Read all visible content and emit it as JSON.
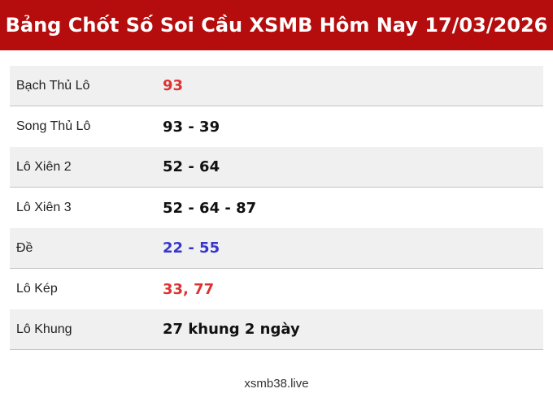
{
  "header": {
    "title": "Bảng Chốt Số Soi Cầu XSMB Hôm Nay 17/03/2026"
  },
  "table": {
    "rows": [
      {
        "label": "Bạch Thủ Lô",
        "value": "93",
        "value_color": "#dd3333"
      },
      {
        "label": "Song Thủ Lô",
        "value": "93 - 39",
        "value_color": "#111111"
      },
      {
        "label": "Lô Xiên 2",
        "value": "52 - 64",
        "value_color": "#111111"
      },
      {
        "label": "Lô Xiên 3",
        "value": "52 - 64 - 87",
        "value_color": "#111111"
      },
      {
        "label": "Đề",
        "value": "22 - 55",
        "value_color": "#3636cc"
      },
      {
        "label": "Lô Kép",
        "value": "33, 77",
        "value_color": "#dd3333"
      },
      {
        "label": "Lô Khung",
        "value": "27 khung 2 ngày",
        "value_color": "#111111"
      }
    ]
  },
  "footer": {
    "site": "xsmb38.live"
  },
  "colors": {
    "banner_bg": "#b50d0d",
    "banner_text": "#ffffff",
    "row_alt_bg": "#f0f0f0",
    "row_border": "#c4c4c4",
    "red_value": "#dd3333",
    "blue_value": "#3636cc"
  }
}
